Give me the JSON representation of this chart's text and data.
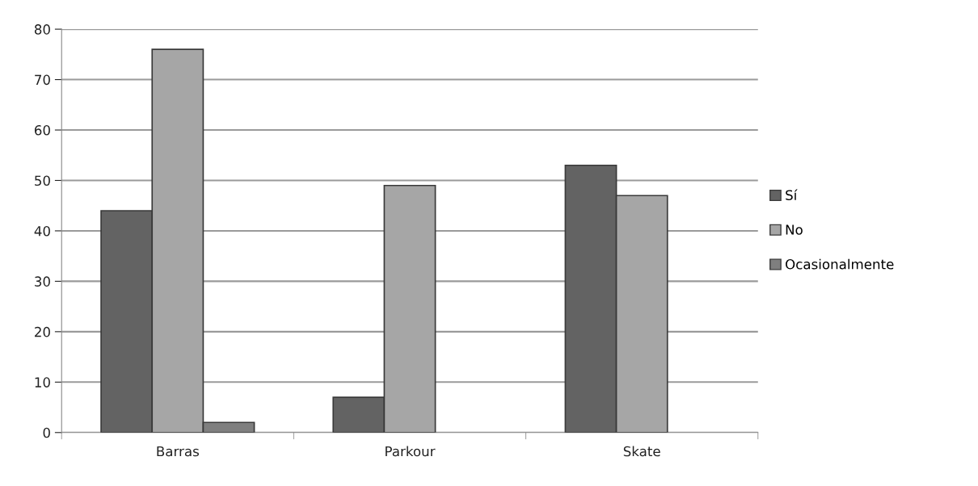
{
  "chart_data": {
    "type": "bar",
    "categories": [
      "Barras",
      "Parkour",
      "Skate"
    ],
    "series": [
      {
        "name": "Sí",
        "color": "#636363",
        "values": [
          44,
          7,
          53
        ]
      },
      {
        "name": "No",
        "color": "#a6a6a6",
        "values": [
          76,
          49,
          47
        ]
      },
      {
        "name": "Ocasionalmente",
        "color": "#7f7f7f",
        "values": [
          2,
          0,
          0
        ]
      }
    ],
    "ylim": [
      0,
      80
    ],
    "yticks": [
      0,
      10,
      20,
      30,
      40,
      50,
      60,
      70,
      80
    ],
    "grid": "y",
    "legend": "right"
  }
}
